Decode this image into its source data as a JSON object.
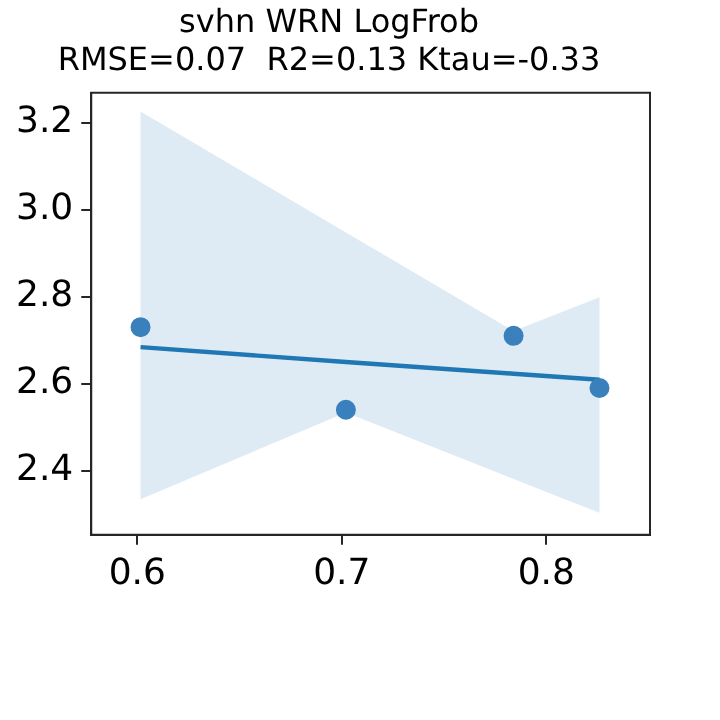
{
  "chart_data": {
    "type": "scatter",
    "title": "svhn WRN LogFrob",
    "subtitle": "RMSE=0.07  R2=0.13 Ktau=-0.33",
    "xlim": [
      0.5775,
      0.8507
    ],
    "xticks": [
      0.6,
      0.7,
      0.8
    ],
    "ylim": [
      2.2525,
      3.269
    ],
    "yticks": [
      2.4,
      2.6,
      2.8,
      {
        "value": 3.0,
        "label": "3.0"
      },
      3.2
    ],
    "grid": false,
    "legend": false,
    "marker": "circle",
    "series": [
      {
        "color": "#3a80bd",
        "x": [
          0.6016,
          0.702,
          0.784,
          0.826
        ],
        "values": [
          2.73,
          2.54,
          2.71,
          2.59
        ]
      },
      {
        "type": "line",
        "color": "#1f77b4",
        "marker": "none",
        "x": [
          0.6016,
          0.702,
          0.784,
          0.826
        ],
        "values": [
          2.684,
          2.65,
          2.623,
          2.609
        ],
        "lower": [
          2.334,
          2.534,
          2.381,
          2.303
        ],
        "upper": [
          3.226,
          2.948,
          2.721,
          2.799
        ]
      }
    ]
  }
}
